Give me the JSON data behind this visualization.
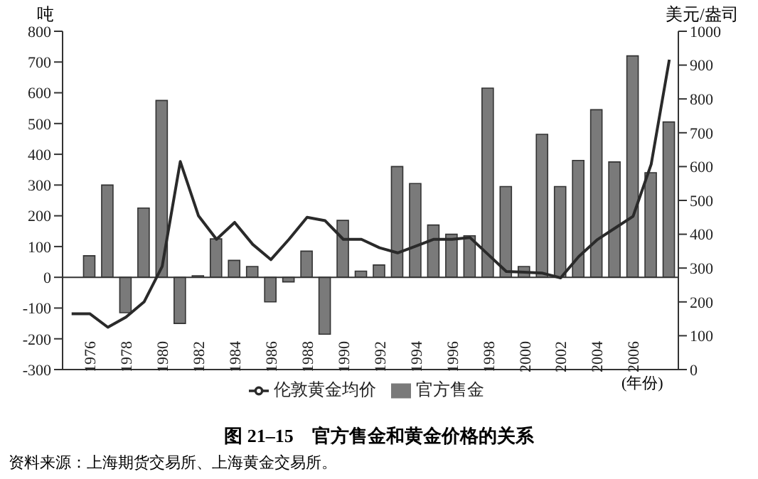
{
  "chart_data": {
    "type": "bar",
    "title": "图 21–15　官方售金和黄金价格的关系",
    "xlabel": "(年份)",
    "ylabel": "吨",
    "y2label": "美元/盎司",
    "annotations": [
      "资料来源：上海期货交易所、上海黄金交易所。"
    ],
    "categories": [
      null,
      "1976",
      null,
      "1978",
      null,
      "1980",
      null,
      "1982",
      null,
      "1984",
      null,
      "1986",
      null,
      "1988",
      null,
      "1990",
      null,
      "1992",
      null,
      "1994",
      null,
      "1996",
      null,
      "1998",
      null,
      "2000",
      null,
      "2002",
      null,
      "2004",
      null,
      "2006",
      null,
      null
    ],
    "series": [
      {
        "name": "官方售金",
        "color": "#7a7a7a",
        "values": [
          null,
          70,
          300,
          -115,
          225,
          575,
          -150,
          5,
          125,
          55,
          35,
          -80,
          -15,
          85,
          -185,
          185,
          20,
          40,
          360,
          305,
          170,
          140,
          135,
          615,
          295,
          35,
          465,
          295,
          380,
          545,
          375,
          720,
          340,
          505
        ]
      },
      {
        "name": "伦敦黄金均价",
        "type": "line",
        "axis": "y2",
        "color": "#2a2a2a",
        "values": [
          165,
          165,
          125,
          155,
          200,
          305,
          615,
          455,
          385,
          435,
          370,
          325,
          385,
          450,
          440,
          385,
          385,
          360,
          345,
          365,
          385,
          385,
          390,
          340,
          290,
          288,
          285,
          271,
          334,
          383,
          418,
          453,
          607,
          916
        ]
      }
    ],
    "ylim": [
      -300,
      800
    ],
    "yticks": [
      -300,
      -200,
      -100,
      0,
      100,
      200,
      300,
      400,
      500,
      600,
      700,
      800
    ],
    "y2lim": [
      0,
      1000
    ],
    "y2ticks": [
      0,
      100,
      200,
      300,
      400,
      500,
      600,
      700,
      800,
      900,
      1000
    ],
    "ref_lines": [
      {
        "axis": "y",
        "value": 0,
        "color": "#333333"
      }
    ],
    "legend": "bottom",
    "marker": "none",
    "line_style": "solid"
  }
}
